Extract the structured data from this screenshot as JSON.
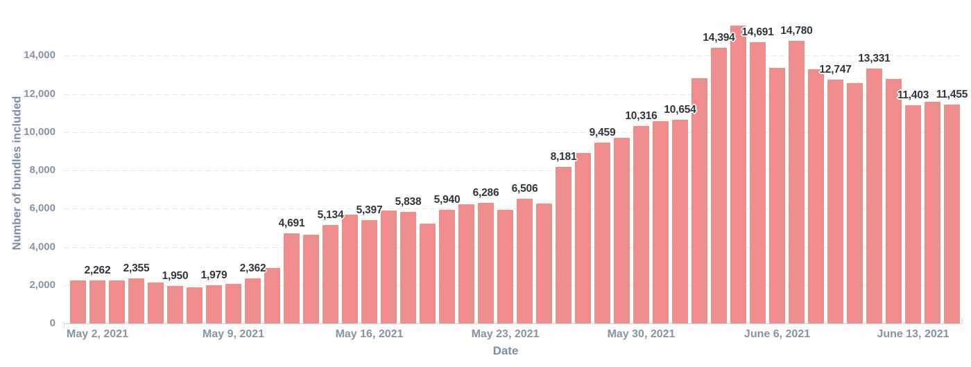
{
  "chart_data": {
    "type": "bar",
    "title": "",
    "xlabel": "Date",
    "ylabel": "Number of bundles included",
    "legend": "none",
    "grid": "horizontal-dashed",
    "ylim": [
      0,
      15800
    ],
    "bar_color": "#EF8C8C",
    "value_label_color": "#2E353B",
    "tick_label_color": "#8793A3",
    "axis_title_color": "#7D8EA2",
    "x": [
      "May 1, 2021",
      "May 2, 2021",
      "May 3, 2021",
      "May 4, 2021",
      "May 5, 2021",
      "May 6, 2021",
      "May 7, 2021",
      "May 8, 2021",
      "May 9, 2021",
      "May 10, 2021",
      "May 11, 2021",
      "May 12, 2021",
      "May 13, 2021",
      "May 14, 2021",
      "May 15, 2021",
      "May 16, 2021",
      "May 17, 2021",
      "May 18, 2021",
      "May 19, 2021",
      "May 20, 2021",
      "May 21, 2021",
      "May 22, 2021",
      "May 23, 2021",
      "May 24, 2021",
      "May 25, 2021",
      "May 26, 2021",
      "May 27, 2021",
      "May 28, 2021",
      "May 29, 2021",
      "May 30, 2021",
      "May 31, 2021",
      "June 1, 2021",
      "June 2, 2021",
      "June 3, 2021",
      "June 4, 2021",
      "June 5, 2021",
      "June 6, 2021",
      "June 7, 2021",
      "June 8, 2021",
      "June 9, 2021",
      "June 10, 2021",
      "June 11, 2021",
      "June 12, 2021",
      "June 13, 2021",
      "June 14, 2021",
      "June 15, 2021"
    ],
    "values": [
      2250,
      2262,
      2250,
      2355,
      2120,
      1950,
      1870,
      1979,
      2080,
      2362,
      2880,
      4691,
      4640,
      5134,
      5690,
      5397,
      5910,
      5838,
      5200,
      5940,
      6220,
      6286,
      5940,
      6506,
      6260,
      8181,
      8890,
      9459,
      9710,
      10316,
      10560,
      10654,
      12830,
      14394,
      15580,
      14691,
      13360,
      14780,
      13270,
      12747,
      12570,
      13331,
      12780,
      11403,
      11580,
      11455
    ],
    "data_labels": [
      null,
      "2,262",
      null,
      "2,355",
      null,
      "1,950",
      null,
      "1,979",
      null,
      "2,362",
      null,
      "4,691",
      null,
      "5,134",
      null,
      "5,397",
      null,
      "5,838",
      null,
      "5,940",
      null,
      "6,286",
      null,
      "6,506",
      null,
      "8,181",
      null,
      "9,459",
      null,
      "10,316",
      null,
      "10,654",
      null,
      "14,394",
      null,
      "14,691",
      null,
      "14,780",
      null,
      "12,747",
      null,
      "13,331",
      null,
      "11,403",
      null,
      "11,455"
    ],
    "x_ticks": [
      {
        "label": "May 2, 2021",
        "index": 1
      },
      {
        "label": "May 9, 2021",
        "index": 8
      },
      {
        "label": "May 16, 2021",
        "index": 15
      },
      {
        "label": "May 23, 2021",
        "index": 22
      },
      {
        "label": "May 30, 2021",
        "index": 29
      },
      {
        "label": "June 6, 2021",
        "index": 36
      },
      {
        "label": "June 13, 2021",
        "index": 43
      }
    ],
    "y_ticks": [
      {
        "label": "0",
        "value": 0
      },
      {
        "label": "2,000",
        "value": 2000
      },
      {
        "label": "4,000",
        "value": 4000
      },
      {
        "label": "6,000",
        "value": 6000
      },
      {
        "label": "8,000",
        "value": 8000
      },
      {
        "label": "10,000",
        "value": 10000
      },
      {
        "label": "12,000",
        "value": 12000
      },
      {
        "label": "14,000",
        "value": 14000
      }
    ]
  }
}
